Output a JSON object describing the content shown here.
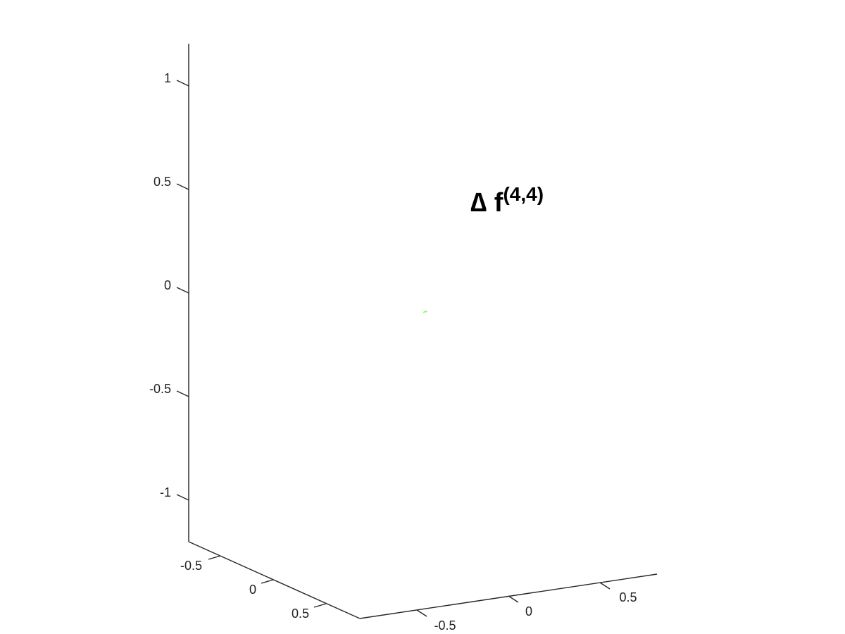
{
  "chart_data": {
    "type": "scatter",
    "dimensions": 3,
    "title": {
      "prefix": "∆ f",
      "superscript": "(4,4)"
    },
    "axes": {
      "x": {
        "ticks": [
          -0.5,
          0,
          0.5
        ],
        "tick_labels": [
          "-0.5",
          "0",
          "0.5"
        ]
      },
      "y": {
        "ticks": [
          -0.5,
          0,
          0.5
        ],
        "tick_labels": [
          "-0.5",
          "0",
          "0.5"
        ]
      },
      "z": {
        "ticks": [
          -1,
          -0.5,
          0,
          0.5,
          1
        ],
        "tick_labels": [
          "-1",
          "-0.5",
          "0",
          "0.5",
          "1"
        ]
      }
    },
    "grid": false,
    "points": [
      {
        "x": 0,
        "y": 0,
        "z": -0.09,
        "color": "#66ff33"
      }
    ]
  }
}
